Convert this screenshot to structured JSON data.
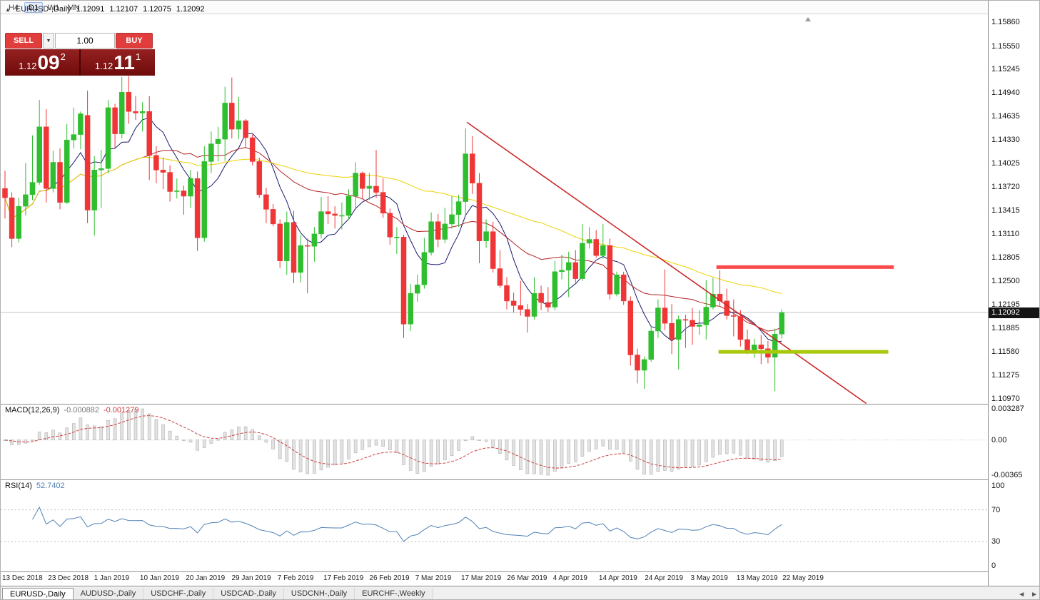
{
  "colors": {
    "up": "#2fbe2f",
    "down": "#ef3535",
    "ma_fast": "#191970",
    "ma_mid": "#b22222",
    "ma_slow": "#ecd200",
    "trendline": "#cc2a2a",
    "resistance": "#fa4b4b",
    "support": "#a8c80a",
    "macd_hist": "#e2e2e2",
    "macd_hist_border": "#b0b0b0",
    "macd_signal": "#d04040",
    "rsi_line": "#4f81b5",
    "bid_line": "#c4c4c4",
    "sell_buy_red": "#e23d3d",
    "price_box_top": "#952020",
    "price_box_bottom": "#6f0c0c"
  },
  "toolbar": {
    "timeframes": [
      "H4",
      "D1",
      "W1",
      "MN"
    ],
    "active": "D1"
  },
  "chart_header": {
    "symbol": "EURUSD-,Daily",
    "open": "1.12091",
    "high": "1.12107",
    "low": "1.12075",
    "close": "1.12092"
  },
  "trade_panel": {
    "sell_label": "SELL",
    "buy_label": "BUY",
    "volume": "1.00",
    "sell_price": {
      "base": "1.12",
      "big": "09",
      "sup": "2"
    },
    "buy_price": {
      "base": "1.12",
      "big": "11",
      "sup": "1"
    }
  },
  "icons": {
    "scroll_left": "◄",
    "scroll_right": "►",
    "volume_dropdown": "▼",
    "shift_marker": "up-triangle"
  },
  "tabs": [
    "EURUSD-,Daily",
    "AUDUSD-,Daily",
    "USDCHF-,Daily",
    "USDCAD-,Daily",
    "USDCNH-,Daily",
    "EURCHF-,Weekly"
  ],
  "active_tab": "EURUSD-,Daily",
  "chart_data": {
    "type": "candlestick",
    "title": "EURUSD-,Daily",
    "price_axis_ticks": [
      "1.15860",
      "1.15550",
      "1.15245",
      "1.14940",
      "1.14635",
      "1.14330",
      "1.14025",
      "1.13720",
      "1.13415",
      "1.13110",
      "1.12805",
      "1.12500",
      "1.12195",
      "1.11885",
      "1.11580",
      "1.11275",
      "1.10970"
    ],
    "current_price": 1.12092,
    "current_price_label": "1.12092",
    "date_labels": [
      "13 Dec 2018",
      "23 Dec 2018",
      "1 Jan 2019",
      "10 Jan 2019",
      "20 Jan 2019",
      "29 Jan 2019",
      "7 Feb 2019",
      "17 Feb 2019",
      "26 Feb 2019",
      "7 Mar 2019",
      "17 Mar 2019",
      "26 Mar 2019",
      "4 Apr 2019",
      "14 Apr 2019",
      "24 Apr 2019",
      "3 May 2019",
      "13 May 2019",
      "22 May 2019"
    ],
    "candles": [
      [
        1.137,
        1.1393,
        1.1331,
        1.1358
      ],
      [
        1.1358,
        1.1365,
        1.1294,
        1.1305
      ],
      [
        1.1305,
        1.1358,
        1.13,
        1.1347
      ],
      [
        1.1347,
        1.1403,
        1.1335,
        1.1362
      ],
      [
        1.1362,
        1.1439,
        1.1355,
        1.1378
      ],
      [
        1.1378,
        1.1485,
        1.1375,
        1.145
      ],
      [
        1.145,
        1.1473,
        1.1352,
        1.137
      ],
      [
        1.137,
        1.1419,
        1.1365,
        1.1404
      ],
      [
        1.1404,
        1.1422,
        1.1343,
        1.1352
      ],
      [
        1.1352,
        1.1454,
        1.135,
        1.1433
      ],
      [
        1.1433,
        1.1475,
        1.1422,
        1.144
      ],
      [
        1.144,
        1.147,
        1.1421,
        1.1467
      ],
      [
        1.1465,
        1.1497,
        1.1325,
        1.1342
      ],
      [
        1.1342,
        1.1412,
        1.1309,
        1.1394
      ],
      [
        1.1394,
        1.142,
        1.1345,
        1.1396
      ],
      [
        1.1396,
        1.1485,
        1.139,
        1.1475
      ],
      [
        1.1475,
        1.148,
        1.1422,
        1.1441
      ],
      [
        1.1441,
        1.1515,
        1.1435,
        1.1495
      ],
      [
        1.1495,
        1.1516,
        1.1454,
        1.147
      ],
      [
        1.147,
        1.149,
        1.1459,
        1.1468
      ],
      [
        1.1468,
        1.1482,
        1.1444,
        1.147
      ],
      [
        1.147,
        1.149,
        1.1381,
        1.1413
      ],
      [
        1.1413,
        1.1425,
        1.1377,
        1.1394
      ],
      [
        1.1394,
        1.141,
        1.1369,
        1.1391
      ],
      [
        1.1391,
        1.14,
        1.1353,
        1.1366
      ],
      [
        1.1366,
        1.1383,
        1.1357,
        1.1367
      ],
      [
        1.1367,
        1.1374,
        1.1336,
        1.136
      ],
      [
        1.136,
        1.1394,
        1.1345,
        1.1383
      ],
      [
        1.1383,
        1.1392,
        1.1289,
        1.1306
      ],
      [
        1.1306,
        1.1425,
        1.1301,
        1.1405
      ],
      [
        1.1405,
        1.1444,
        1.139,
        1.1428
      ],
      [
        1.1428,
        1.145,
        1.1405,
        1.1434
      ],
      [
        1.1434,
        1.1502,
        1.1406,
        1.1481
      ],
      [
        1.1481,
        1.1514,
        1.1435,
        1.1447
      ],
      [
        1.1447,
        1.1489,
        1.1434,
        1.1458
      ],
      [
        1.1458,
        1.146,
        1.1424,
        1.1436
      ],
      [
        1.1436,
        1.144,
        1.14,
        1.1405
      ],
      [
        1.1405,
        1.141,
        1.1358,
        1.1362
      ],
      [
        1.1362,
        1.1371,
        1.1325,
        1.1343
      ],
      [
        1.1343,
        1.135,
        1.1321,
        1.1324
      ],
      [
        1.1324,
        1.133,
        1.1267,
        1.1276
      ],
      [
        1.1276,
        1.134,
        1.1258,
        1.1326
      ],
      [
        1.1326,
        1.1341,
        1.1247,
        1.1261
      ],
      [
        1.1261,
        1.131,
        1.1248,
        1.1296
      ],
      [
        1.1296,
        1.1305,
        1.1234,
        1.1295
      ],
      [
        1.1295,
        1.132,
        1.1275,
        1.1311
      ],
      [
        1.1311,
        1.1359,
        1.1305,
        1.134
      ],
      [
        1.134,
        1.136,
        1.1324,
        1.1337
      ],
      [
        1.1337,
        1.1347,
        1.1318,
        1.1335
      ],
      [
        1.1335,
        1.1352,
        1.1317,
        1.1335
      ],
      [
        1.1335,
        1.1369,
        1.133,
        1.136
      ],
      [
        1.136,
        1.1404,
        1.1345,
        1.139
      ],
      [
        1.139,
        1.1392,
        1.1357,
        1.137
      ],
      [
        1.137,
        1.139,
        1.1355,
        1.1373
      ],
      [
        1.1373,
        1.142,
        1.1358,
        1.1365
      ],
      [
        1.1365,
        1.1383,
        1.1332,
        1.1338
      ],
      [
        1.1338,
        1.1344,
        1.1297,
        1.1307
      ],
      [
        1.1307,
        1.132,
        1.1285,
        1.1307
      ],
      [
        1.1307,
        1.131,
        1.1176,
        1.1194
      ],
      [
        1.1194,
        1.1246,
        1.1185,
        1.1234
      ],
      [
        1.1234,
        1.1258,
        1.1223,
        1.1245
      ],
      [
        1.1245,
        1.1306,
        1.124,
        1.1287
      ],
      [
        1.1287,
        1.1339,
        1.1283,
        1.1327
      ],
      [
        1.1327,
        1.1337,
        1.1294,
        1.1304
      ],
      [
        1.1304,
        1.1345,
        1.1299,
        1.1324
      ],
      [
        1.1324,
        1.136,
        1.1318,
        1.1336
      ],
      [
        1.1336,
        1.1362,
        1.132,
        1.1353
      ],
      [
        1.1353,
        1.1448,
        1.1335,
        1.1415
      ],
      [
        1.1415,
        1.1438,
        1.1363,
        1.1377
      ],
      [
        1.1377,
        1.139,
        1.1273,
        1.1302
      ],
      [
        1.1302,
        1.133,
        1.1293,
        1.1314
      ],
      [
        1.1314,
        1.1327,
        1.1261,
        1.1266
      ],
      [
        1.1266,
        1.129,
        1.1241,
        1.1244
      ],
      [
        1.1244,
        1.1255,
        1.1213,
        1.1224
      ],
      [
        1.1224,
        1.1235,
        1.1209,
        1.1218
      ],
      [
        1.1218,
        1.125,
        1.1205,
        1.1213
      ],
      [
        1.1213,
        1.122,
        1.1183,
        1.1204
      ],
      [
        1.1204,
        1.1255,
        1.12,
        1.1234
      ],
      [
        1.1234,
        1.1244,
        1.1212,
        1.1222
      ],
      [
        1.1222,
        1.1242,
        1.121,
        1.1216
      ],
      [
        1.1216,
        1.1276,
        1.1212,
        1.1262
      ],
      [
        1.1262,
        1.1284,
        1.1252,
        1.1264
      ],
      [
        1.1264,
        1.1288,
        1.1229,
        1.1274
      ],
      [
        1.1274,
        1.129,
        1.1248,
        1.1253
      ],
      [
        1.1253,
        1.1324,
        1.125,
        1.1299
      ],
      [
        1.1299,
        1.132,
        1.1292,
        1.1304
      ],
      [
        1.1304,
        1.1316,
        1.128,
        1.1283
      ],
      [
        1.1283,
        1.1324,
        1.1279,
        1.1296
      ],
      [
        1.1296,
        1.1305,
        1.1226,
        1.1233
      ],
      [
        1.1233,
        1.1262,
        1.123,
        1.1258
      ],
      [
        1.1258,
        1.1262,
        1.1219,
        1.1224
      ],
      [
        1.1224,
        1.123,
        1.114,
        1.1154
      ],
      [
        1.1154,
        1.1162,
        1.1117,
        1.1134
      ],
      [
        1.1134,
        1.1152,
        1.111,
        1.1148
      ],
      [
        1.1148,
        1.1192,
        1.1145,
        1.1185
      ],
      [
        1.1185,
        1.1226,
        1.1176,
        1.1215
      ],
      [
        1.1215,
        1.1265,
        1.1186,
        1.1195
      ],
      [
        1.1195,
        1.122,
        1.1155,
        1.1174
      ],
      [
        1.1174,
        1.1205,
        1.1135,
        1.12
      ],
      [
        1.12,
        1.1206,
        1.1163,
        1.1199
      ],
      [
        1.1199,
        1.1215,
        1.1167,
        1.1191
      ],
      [
        1.1191,
        1.1212,
        1.118,
        1.1193
      ],
      [
        1.1193,
        1.1251,
        1.1174,
        1.1216
      ],
      [
        1.1216,
        1.1254,
        1.1213,
        1.1233
      ],
      [
        1.1233,
        1.1264,
        1.1218,
        1.1224
      ],
      [
        1.1224,
        1.124,
        1.12,
        1.1205
      ],
      [
        1.1205,
        1.1226,
        1.1178,
        1.1204
      ],
      [
        1.1204,
        1.1212,
        1.1165,
        1.1174
      ],
      [
        1.1174,
        1.1187,
        1.1155,
        1.1158
      ],
      [
        1.1158,
        1.1175,
        1.115,
        1.1167
      ],
      [
        1.1167,
        1.118,
        1.1142,
        1.1162
      ],
      [
        1.1162,
        1.1172,
        1.1143,
        1.1151
      ],
      [
        1.1151,
        1.1188,
        1.1107,
        1.1181
      ],
      [
        1.1181,
        1.1213,
        1.1175,
        1.1209
      ]
    ],
    "moving_averages": [
      {
        "period": 7,
        "color_key": "ma_fast"
      },
      {
        "period": 21,
        "color_key": "ma_mid"
      },
      {
        "period": 50,
        "color_key": "ma_slow"
      }
    ],
    "trendline": {
      "i1": 67.2,
      "p1": 1.1456,
      "i2": 125.3,
      "p2": 1.1091
    },
    "resistance_line": {
      "price": 1.1268,
      "i1": 103.5,
      "i2": 129.3
    },
    "support_line": {
      "price": 1.1158,
      "i1": 103.8,
      "i2": 128.5
    },
    "indicators": {
      "macd": {
        "label": "MACD(12,26,9)",
        "value1": "-0.000882",
        "value2": "-0.001279",
        "params": [
          12,
          26,
          9
        ],
        "axis_max": "0.003287",
        "axis_zero": "0.00",
        "axis_min": "-0.00365"
      },
      "rsi": {
        "label": "RSI(14)",
        "value": "52.7402",
        "period": 14,
        "axis": [
          "100",
          "70",
          "30",
          "0"
        ],
        "levels": [
          70,
          30
        ]
      }
    }
  }
}
